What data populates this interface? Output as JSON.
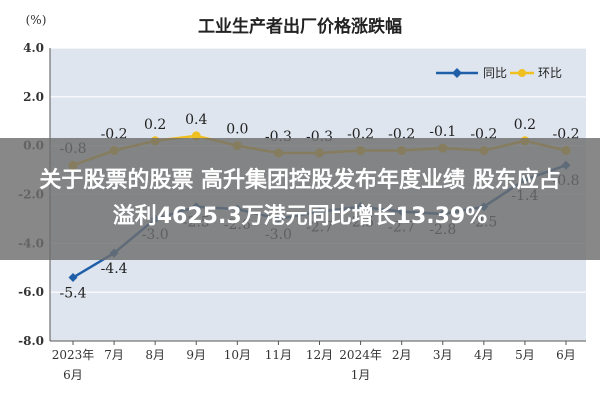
{
  "chart_data": {
    "type": "line",
    "title": "工业生产者出厂价格涨跌幅",
    "unit_label": "(%)",
    "ylim": [
      -8.0,
      4.0
    ],
    "yticks": [
      "4.0",
      "2.0",
      "0.0",
      "-2.0",
      "-4.0",
      "-6.0",
      "-8.0"
    ],
    "ytick_values": [
      4,
      2,
      0,
      -2,
      -4,
      -6,
      -8
    ],
    "grid": true,
    "legend_position": "top-right",
    "categories": [
      [
        "2023年",
        "6月"
      ],
      [
        "7月"
      ],
      [
        "8月"
      ],
      [
        "9月"
      ],
      [
        "10月"
      ],
      [
        "11月"
      ],
      [
        "12月"
      ],
      [
        "2024年",
        "1月"
      ],
      [
        "2月"
      ],
      [
        "3月"
      ],
      [
        "4月"
      ],
      [
        "5月"
      ],
      [
        "6月"
      ]
    ],
    "series": [
      {
        "name": "同比",
        "color": "#1f5fa8",
        "values": [
          -5.4,
          -4.4,
          -3.0,
          -2.5,
          -2.6,
          -3.0,
          -2.7,
          -2.5,
          -2.7,
          -2.8,
          -2.5,
          -1.4,
          -0.8
        ],
        "labels": [
          "-5.4",
          "-4.4",
          "-3.0",
          "-2.5",
          "-2.6",
          "-3.0",
          "-2.7",
          "-2.5",
          "-2.7",
          "-2.8",
          "-2.5",
          "-1.4",
          "-0.8"
        ],
        "marker": "diamond"
      },
      {
        "name": "环比",
        "color": "#f0c020",
        "values": [
          -0.8,
          -0.2,
          0.2,
          0.4,
          0.0,
          -0.3,
          -0.3,
          -0.2,
          -0.2,
          -0.1,
          -0.2,
          0.2,
          -0.2
        ],
        "labels": [
          "-0.8",
          "-0.2",
          "0.2",
          "0.4",
          "0.0",
          "-0.3",
          "-0.3",
          "-0.2",
          "-0.2",
          "-0.1",
          "-0.2",
          "0.2",
          "-0.2"
        ],
        "marker": "circle"
      }
    ]
  },
  "overlay": {
    "line1": "关于股票的股票 高升集团控股发布年度业绩 股东应占",
    "line2": "溢利4625.3万港元同比增长13.39%"
  }
}
